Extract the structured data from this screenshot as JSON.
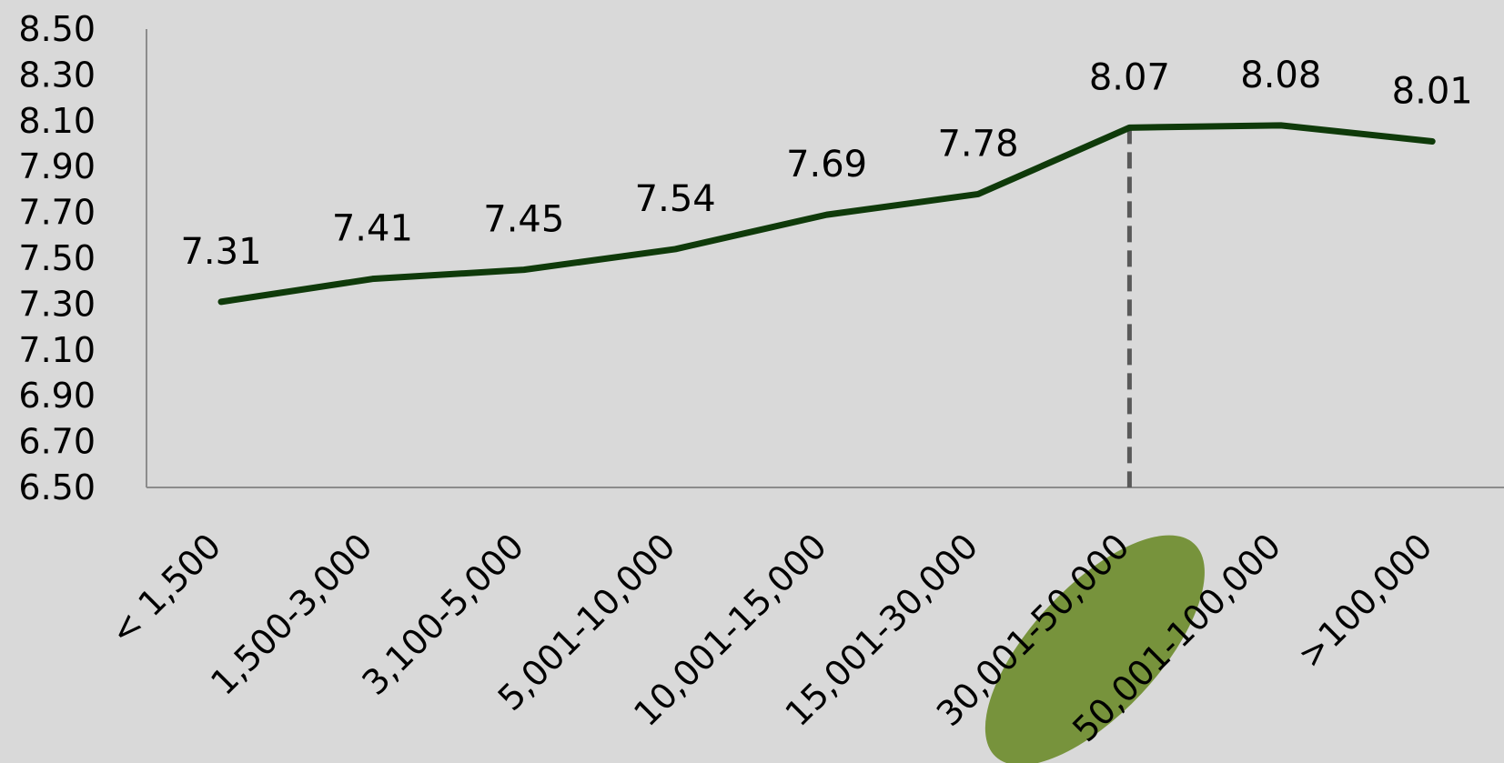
{
  "chart_data": {
    "type": "line",
    "title": "",
    "xlabel": "",
    "ylabel": "",
    "categories": [
      "< 1,500",
      "1,500-3,000",
      "3,100-5,000",
      "5,001-10,000",
      "10,001-15,000",
      "15,001-30,000",
      "30,001-50,000",
      "50,001-100,000",
      ">100,000"
    ],
    "series": [
      {
        "values": [
          7.31,
          7.41,
          7.45,
          7.54,
          7.69,
          7.78,
          8.07,
          8.08,
          8.01
        ]
      }
    ],
    "data_labels": [
      "7.31",
      "7.41",
      "7.45",
      "7.54",
      "7.69",
      "7.78",
      "8.07",
      "8.08",
      "8.01"
    ],
    "ylim": [
      6.5,
      8.5
    ],
    "yticks": [
      "6.50",
      "6.70",
      "6.90",
      "7.10",
      "7.30",
      "7.50",
      "7.70",
      "7.90",
      "8.10",
      "8.30",
      "8.50"
    ],
    "grid": false,
    "legend": "none",
    "highlight_category": "30,001-50,000",
    "colors": {
      "background": "#d9d9d9",
      "line": "#0f3a0a",
      "axis": "#8c8c8c",
      "marker_line": "#595959",
      "highlight": "#77933c"
    }
  }
}
